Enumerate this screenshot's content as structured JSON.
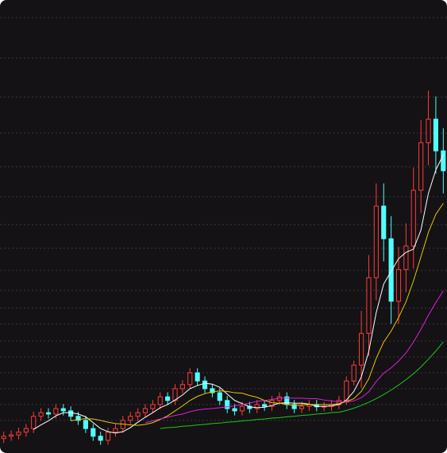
{
  "chart_data": {
    "type": "candlestick",
    "up_color": "#ff3c3c",
    "down_color": "#54fcfc",
    "open": [
      3.2,
      3.7,
      4.0,
      4.6,
      5.4,
      8.1,
      8.9,
      8.6,
      9.8,
      9.3,
      8.1,
      7.2,
      5.4,
      3.7,
      2.8,
      4.6,
      5.4,
      7.2,
      8.1,
      8.9,
      9.8,
      10.7,
      12.4,
      11.6,
      14.2,
      15.1,
      17.7,
      15.9,
      14.2,
      13.3,
      11.6,
      9.8,
      9.3,
      10.3,
      9.8,
      10.7,
      10.3,
      11.6,
      12.4,
      10.7,
      9.8,
      10.3,
      10.7,
      10.2,
      10.3,
      10.7,
      11.6,
      15.9,
      19.4,
      26.4,
      38.7,
      54.5,
      47.3,
      33.5,
      40.5,
      45.7,
      58.0,
      68.5,
      73.7,
      66.7
    ],
    "high": [
      4.7,
      5.0,
      5.6,
      6.4,
      9.1,
      9.9,
      9.9,
      10.8,
      10.8,
      10.3,
      9.1,
      8.2,
      6.4,
      4.7,
      5.6,
      6.4,
      8.2,
      9.1,
      9.9,
      10.8,
      11.7,
      13.4,
      13.4,
      15.2,
      16.1,
      18.7,
      18.7,
      16.9,
      15.2,
      14.3,
      12.6,
      10.8,
      11.3,
      11.3,
      11.7,
      11.7,
      12.6,
      13.4,
      13.4,
      11.7,
      11.3,
      11.7,
      11.7,
      11.3,
      11.7,
      12.6,
      16.9,
      20.4,
      31.4,
      43.7,
      59.5,
      59.5,
      52.3,
      45.5,
      50.7,
      63.0,
      73.5,
      80.0,
      78.7,
      71.7
    ],
    "low": [
      2.2,
      2.7,
      3.0,
      3.6,
      4.4,
      7.1,
      7.6,
      7.6,
      8.3,
      7.1,
      6.2,
      4.4,
      2.7,
      1.8,
      1.8,
      3.6,
      4.4,
      6.2,
      7.1,
      7.9,
      8.8,
      9.7,
      10.6,
      10.6,
      13.2,
      14.1,
      14.9,
      13.2,
      12.3,
      10.6,
      8.8,
      8.3,
      8.3,
      8.8,
      8.8,
      9.3,
      9.3,
      10.6,
      9.7,
      8.8,
      8.8,
      9.3,
      9.2,
      9.2,
      9.3,
      9.7,
      10.6,
      14.9,
      14.4,
      21.4,
      33.7,
      42.3,
      28.5,
      28.5,
      35.5,
      40.7,
      53.0,
      63.5,
      61.7,
      57.3
    ],
    "close": [
      3.7,
      4.0,
      4.6,
      5.4,
      8.1,
      8.9,
      8.6,
      9.8,
      9.3,
      8.1,
      7.2,
      5.4,
      3.7,
      2.8,
      4.6,
      5.4,
      7.2,
      8.1,
      8.9,
      9.8,
      10.7,
      12.4,
      11.6,
      14.2,
      15.1,
      17.7,
      15.9,
      14.2,
      13.3,
      11.6,
      9.8,
      9.3,
      10.3,
      9.8,
      10.7,
      10.3,
      11.6,
      12.4,
      10.7,
      9.8,
      10.3,
      10.7,
      10.2,
      10.3,
      10.7,
      11.6,
      15.9,
      19.4,
      26.4,
      38.7,
      54.5,
      47.3,
      33.5,
      40.5,
      45.7,
      58.0,
      68.5,
      73.7,
      66.7,
      62.3
    ],
    "series": [
      {
        "color": "#ffffff",
        "values": [
          null,
          null,
          null,
          null,
          5.2,
          6.2,
          7.1,
          8.2,
          8.9,
          8.9,
          8.6,
          8.0,
          6.7,
          5.4,
          4.7,
          4.4,
          4.7,
          5.6,
          6.8,
          7.9,
          8.9,
          10.0,
          10.7,
          11.7,
          12.8,
          14.2,
          14.9,
          15.4,
          15.2,
          14.5,
          13.0,
          11.6,
          10.9,
          10.2,
          10.0,
          10.1,
          10.5,
          11.0,
          11.1,
          11.0,
          11.0,
          10.8,
          10.3,
          10.3,
          10.4,
          10.7,
          11.7,
          13.6,
          16.8,
          22.4,
          31.0,
          37.3,
          40.1,
          42.9,
          44.3,
          45.0,
          49.2,
          57.3,
          62.5,
          65.8
        ]
      },
      {
        "color": "#e8c800",
        "values": [
          null,
          null,
          null,
          null,
          null,
          null,
          null,
          null,
          null,
          7.1,
          7.4,
          7.6,
          7.5,
          7.2,
          6.8,
          6.5,
          6.4,
          6.2,
          6.1,
          6.3,
          6.7,
          7.4,
          8.2,
          9.3,
          10.4,
          11.6,
          12.5,
          13.1,
          13.5,
          13.7,
          13.6,
          13.3,
          13.2,
          12.7,
          12.3,
          11.6,
          11.1,
          11.0,
          10.7,
          10.5,
          10.6,
          10.7,
          10.7,
          10.7,
          10.7,
          10.9,
          11.3,
          12.0,
          13.6,
          16.4,
          20.9,
          24.5,
          26.9,
          29.9,
          33.4,
          38.0,
          43.3,
          48.7,
          52.7,
          55.1
        ]
      },
      {
        "color": "#e01ee0",
        "values": [
          null,
          null,
          null,
          null,
          null,
          null,
          null,
          null,
          null,
          null,
          null,
          null,
          null,
          null,
          null,
          null,
          null,
          null,
          null,
          6.7,
          7.1,
          7.5,
          7.9,
          8.3,
          8.6,
          9.1,
          9.5,
          9.7,
          9.8,
          10.0,
          10.2,
          10.4,
          10.7,
          11.0,
          11.4,
          11.6,
          11.8,
          12.1,
          12.1,
          12.1,
          12.1,
          12.0,
          12.0,
          11.7,
          11.5,
          11.3,
          11.2,
          11.5,
          12.2,
          13.5,
          15.8,
          17.6,
          18.8,
          20.3,
          22.1,
          24.5,
          27.3,
          30.4,
          33.2,
          35.8
        ]
      },
      {
        "color": "#1ec81e",
        "values": [
          null,
          null,
          null,
          null,
          null,
          null,
          null,
          null,
          null,
          null,
          null,
          null,
          null,
          null,
          null,
          null,
          null,
          null,
          null,
          null,
          null,
          5.4,
          5.6,
          5.7,
          5.9,
          6.0,
          6.2,
          6.3,
          6.5,
          6.6,
          6.8,
          6.9,
          7.1,
          7.2,
          7.4,
          7.5,
          7.7,
          7.8,
          8.0,
          8.1,
          8.3,
          8.4,
          8.6,
          8.7,
          8.9,
          9.0,
          9.4,
          9.9,
          10.5,
          11.2,
          12.0,
          12.9,
          13.9,
          15.0,
          16.2,
          17.5,
          19.0,
          20.7,
          22.5,
          24.5
        ]
      }
    ],
    "ylim": [
      0,
      100
    ],
    "yticks": [
      7.2,
      10.7,
      14.2,
      17.7,
      21.2,
      24.7,
      28.5,
      32.0,
      35.9,
      40.3,
      45.2,
      50.4,
      56.6,
      63.2,
      70.6,
      78.6,
      87.2,
      96.1
    ],
    "grid": true
  }
}
